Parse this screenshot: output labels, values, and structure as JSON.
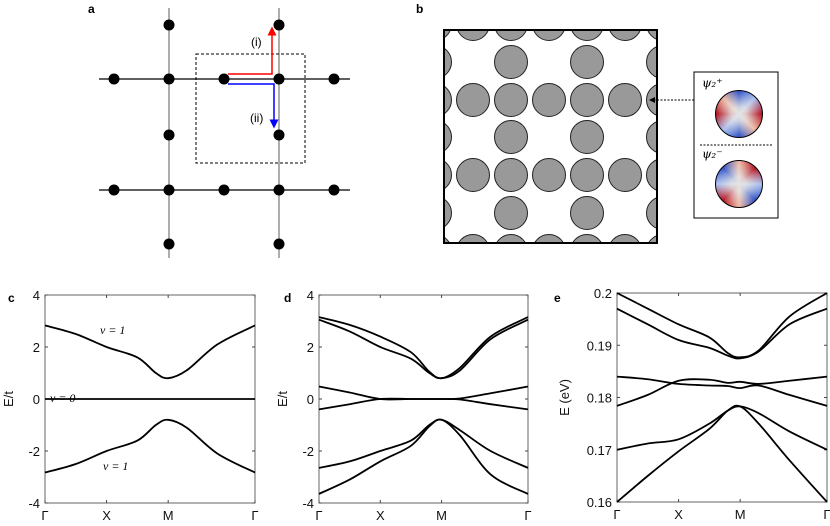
{
  "panels": {
    "a": {
      "label": "a",
      "path_i": "(i)",
      "path_ii": "(ii)",
      "colors": {
        "path_i": "#ff0000",
        "path_ii": "#0000ff"
      }
    },
    "b": {
      "label": "b",
      "psi_plus": "ψ₂⁺",
      "psi_minus": "ψ₂⁻",
      "rod_color": "#999999"
    },
    "c": {
      "label": "c",
      "annotations": [
        "ν = 1",
        "ν = 0",
        "ν = 1"
      ]
    },
    "d": {
      "label": "d"
    },
    "e": {
      "label": "e"
    }
  },
  "chart_data": [
    {
      "id": "c",
      "type": "line",
      "xlabel": "",
      "ylabel": "E/t",
      "ylim": [
        -4,
        4
      ],
      "xticks": [
        "Γ",
        "X",
        "M",
        "Γ"
      ],
      "xtick_positions": [
        0,
        1,
        2,
        3.41
      ],
      "yticks": [
        "-4",
        "-2",
        "0",
        "2",
        "4"
      ],
      "ytick_values": [
        -4,
        -2,
        0,
        2,
        4
      ],
      "x": [
        0,
        0.5,
        1,
        1.5,
        1.8,
        2,
        2.3,
        2.8,
        3.41
      ],
      "series": [
        {
          "values": [
            2.83,
            2.5,
            2.0,
            1.6,
            1.0,
            0.8,
            1.1,
            2.1,
            2.83
          ]
        },
        {
          "values": [
            0,
            0,
            0,
            0,
            0,
            0,
            0,
            0,
            0
          ]
        },
        {
          "values": [
            -2.83,
            -2.5,
            -2.0,
            -1.6,
            -1.0,
            -0.8,
            -1.1,
            -2.1,
            -2.83
          ]
        }
      ]
    },
    {
      "id": "d",
      "type": "line",
      "xlabel": "",
      "ylabel": "E/t",
      "ylim": [
        -4,
        4
      ],
      "xticks": [
        "Γ",
        "X",
        "M",
        "Γ"
      ],
      "xtick_positions": [
        0,
        1,
        2,
        3.41
      ],
      "yticks": [
        "-4",
        "-2",
        "0",
        "2",
        "4"
      ],
      "ytick_values": [
        -4,
        -2,
        0,
        2,
        4
      ],
      "x": [
        0,
        0.5,
        1,
        1.5,
        1.8,
        2,
        2.3,
        2.8,
        3.41
      ],
      "series": [
        {
          "values": [
            3.15,
            2.85,
            2.4,
            1.8,
            1.05,
            0.8,
            1.2,
            2.4,
            3.15
          ]
        },
        {
          "values": [
            3.05,
            2.6,
            2.0,
            1.55,
            1.0,
            0.8,
            1.1,
            2.3,
            3.05
          ]
        },
        {
          "values": [
            0.48,
            0.25,
            0.0,
            0,
            0,
            0,
            0.02,
            0.22,
            0.48
          ]
        },
        {
          "values": [
            -0.4,
            -0.2,
            0.0,
            0,
            0,
            0,
            -0.02,
            -0.2,
            -0.4
          ]
        },
        {
          "values": [
            -2.65,
            -2.4,
            -2.0,
            -1.6,
            -1.0,
            -0.8,
            -1.2,
            -2.0,
            -2.65
          ]
        },
        {
          "values": [
            -3.65,
            -3.1,
            -2.4,
            -1.8,
            -1.05,
            -0.8,
            -1.4,
            -2.9,
            -3.65
          ]
        }
      ]
    },
    {
      "id": "e",
      "type": "line",
      "xlabel": "",
      "ylabel": "E (eV)",
      "ylim": [
        0.16,
        0.2
      ],
      "xticks": [
        "Γ",
        "X",
        "M",
        "Γ"
      ],
      "xtick_positions": [
        0,
        1,
        2,
        3.41
      ],
      "yticks": [
        "0.16",
        "0.17",
        "0.18",
        "0.19",
        "0.2"
      ],
      "ytick_values": [
        0.16,
        0.17,
        0.18,
        0.19,
        0.2
      ],
      "x": [
        0,
        0.5,
        1,
        1.5,
        1.8,
        2,
        2.3,
        2.8,
        3.41
      ],
      "series": [
        {
          "values": [
            0.2,
            0.197,
            0.194,
            0.1915,
            0.1885,
            0.1877,
            0.189,
            0.1955,
            0.2
          ]
        },
        {
          "values": [
            0.197,
            0.194,
            0.191,
            0.1895,
            0.188,
            0.1875,
            0.1888,
            0.194,
            0.197
          ]
        },
        {
          "values": [
            0.184,
            0.1835,
            0.1826,
            0.1823,
            0.1822,
            0.1818,
            0.1823,
            0.1805,
            0.1784
          ]
        },
        {
          "values": [
            0.1784,
            0.1805,
            0.1832,
            0.1834,
            0.1828,
            0.183,
            0.1826,
            0.1832,
            0.184
          ]
        },
        {
          "values": [
            0.17,
            0.1712,
            0.172,
            0.175,
            0.1775,
            0.1783,
            0.177,
            0.1735,
            0.17
          ]
        },
        {
          "values": [
            0.16,
            0.165,
            0.1697,
            0.174,
            0.1775,
            0.1783,
            0.175,
            0.168,
            0.16
          ]
        }
      ]
    }
  ]
}
